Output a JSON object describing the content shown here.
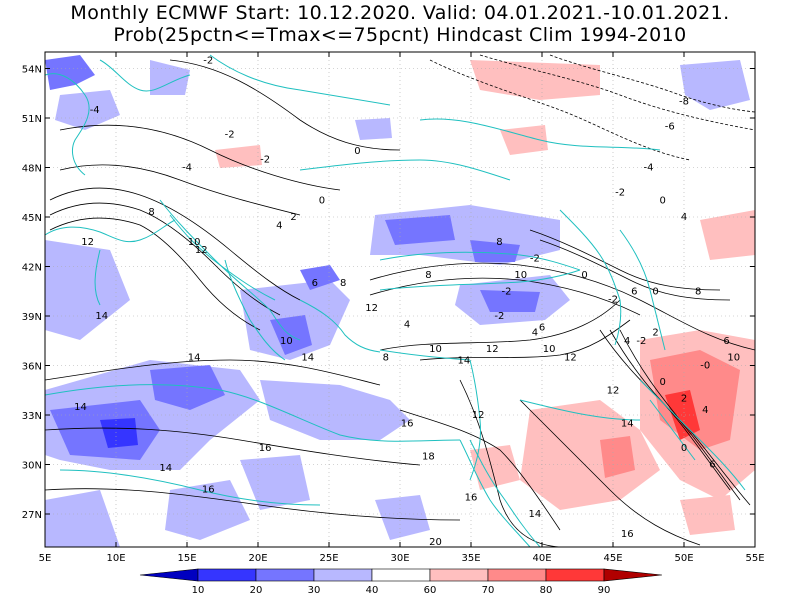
{
  "header": {
    "title_line1": "Monthly ECMWF Start: 10.12.2020. Valid: 04.01.2021.-10.01.2021.",
    "title_line2": "Prob(25pctn<=Tmax<=75pcnt) Hindcast Clim 1994-2010"
  },
  "map": {
    "lon_range": [
      5,
      55
    ],
    "lat_range": [
      25,
      55
    ],
    "lon_ticks": [
      {
        "value": 5,
        "label": "5E"
      },
      {
        "value": 10,
        "label": "10E"
      },
      {
        "value": 15,
        "label": "15E"
      },
      {
        "value": 20,
        "label": "20E"
      },
      {
        "value": 25,
        "label": "25E"
      },
      {
        "value": 30,
        "label": "30E"
      },
      {
        "value": 35,
        "label": "35E"
      },
      {
        "value": 40,
        "label": "40E"
      },
      {
        "value": 45,
        "label": "45E"
      },
      {
        "value": 50,
        "label": "50E"
      },
      {
        "value": 55,
        "label": "55E"
      }
    ],
    "lat_ticks": [
      {
        "value": 27,
        "label": "27N"
      },
      {
        "value": 30,
        "label": "30N"
      },
      {
        "value": 33,
        "label": "33N"
      },
      {
        "value": 36,
        "label": "36N"
      },
      {
        "value": 39,
        "label": "39N"
      },
      {
        "value": 42,
        "label": "42N"
      },
      {
        "value": 45,
        "label": "45N"
      },
      {
        "value": 48,
        "label": "48N"
      },
      {
        "value": 51,
        "label": "51N"
      },
      {
        "value": 54,
        "label": "54N"
      }
    ],
    "coast_color": "#20c0c0",
    "contour_labels": [
      {
        "lon": 16.5,
        "lat": 54.5,
        "text": "-2"
      },
      {
        "lon": 8.5,
        "lat": 51.5,
        "text": "-4"
      },
      {
        "lon": 18,
        "lat": 50.0,
        "text": "-2"
      },
      {
        "lon": 20.5,
        "lat": 48.5,
        "text": "-2"
      },
      {
        "lon": 15,
        "lat": 48.0,
        "text": "-4"
      },
      {
        "lon": 27,
        "lat": 49.0,
        "text": "0"
      },
      {
        "lon": 24.5,
        "lat": 46.0,
        "text": "0"
      },
      {
        "lon": 22.5,
        "lat": 45.0,
        "text": "2"
      },
      {
        "lon": 12.5,
        "lat": 45.3,
        "text": "8"
      },
      {
        "lon": 8,
        "lat": 43.5,
        "text": "12"
      },
      {
        "lon": 15.5,
        "lat": 43.5,
        "text": "10"
      },
      {
        "lon": 16,
        "lat": 43.0,
        "text": "12"
      },
      {
        "lon": 21.5,
        "lat": 44.5,
        "text": "4"
      },
      {
        "lon": 24,
        "lat": 41.0,
        "text": "6"
      },
      {
        "lon": 26,
        "lat": 41.0,
        "text": "8"
      },
      {
        "lon": 32,
        "lat": 41.5,
        "text": "8"
      },
      {
        "lon": 28,
        "lat": 39.5,
        "text": "12"
      },
      {
        "lon": 9,
        "lat": 39.0,
        "text": "14"
      },
      {
        "lon": 30.5,
        "lat": 38.5,
        "text": "4"
      },
      {
        "lon": 37.5,
        "lat": 40.5,
        "text": "-2"
      },
      {
        "lon": 38.5,
        "lat": 41.5,
        "text": "10"
      },
      {
        "lon": 37,
        "lat": 43.5,
        "text": "8"
      },
      {
        "lon": 39.5,
        "lat": 42.5,
        "text": "-2"
      },
      {
        "lon": 43,
        "lat": 41.5,
        "text": "0"
      },
      {
        "lon": 37,
        "lat": 39.0,
        "text": "-2"
      },
      {
        "lon": 39.5,
        "lat": 38.0,
        "text": "4"
      },
      {
        "lon": 40,
        "lat": 38.3,
        "text": "6"
      },
      {
        "lon": 45,
        "lat": 40.0,
        "text": "-2"
      },
      {
        "lon": 46.5,
        "lat": 40.5,
        "text": "6"
      },
      {
        "lon": 48,
        "lat": 40.5,
        "text": "0"
      },
      {
        "lon": 48.5,
        "lat": 46.0,
        "text": "0"
      },
      {
        "lon": 50,
        "lat": 45.0,
        "text": "4"
      },
      {
        "lon": 51,
        "lat": 40.5,
        "text": "8"
      },
      {
        "lon": 47.5,
        "lat": 48.0,
        "text": "-4"
      },
      {
        "lon": 45.5,
        "lat": 46.5,
        "text": "-2"
      },
      {
        "lon": 49,
        "lat": 50.5,
        "text": "-6"
      },
      {
        "lon": 50,
        "lat": 52.0,
        "text": "-8"
      },
      {
        "lon": 48,
        "lat": 38.0,
        "text": "2"
      },
      {
        "lon": 47,
        "lat": 37.5,
        "text": "-2"
      },
      {
        "lon": 46,
        "lat": 37.5,
        "text": "4"
      },
      {
        "lon": 53,
        "lat": 37.5,
        "text": "6"
      },
      {
        "lon": 53.5,
        "lat": 36.5,
        "text": "10"
      },
      {
        "lon": 51.5,
        "lat": 36.0,
        "text": "-0"
      },
      {
        "lon": 48.5,
        "lat": 35.0,
        "text": "0"
      },
      {
        "lon": 50,
        "lat": 34.0,
        "text": "2"
      },
      {
        "lon": 51.5,
        "lat": 33.3,
        "text": "4"
      },
      {
        "lon": 50,
        "lat": 31.0,
        "text": "0"
      },
      {
        "lon": 52,
        "lat": 30.0,
        "text": "6"
      },
      {
        "lon": 40.5,
        "lat": 37.0,
        "text": "10"
      },
      {
        "lon": 42,
        "lat": 36.5,
        "text": "12"
      },
      {
        "lon": 36.5,
        "lat": 37.0,
        "text": "12"
      },
      {
        "lon": 34.5,
        "lat": 36.3,
        "text": "14"
      },
      {
        "lon": 32.5,
        "lat": 37.0,
        "text": "10"
      },
      {
        "lon": 29,
        "lat": 36.5,
        "text": "8"
      },
      {
        "lon": 22,
        "lat": 37.5,
        "text": "10"
      },
      {
        "lon": 23.5,
        "lat": 36.5,
        "text": "14"
      },
      {
        "lon": 15.5,
        "lat": 36.5,
        "text": "14"
      },
      {
        "lon": 7.5,
        "lat": 33.5,
        "text": "14"
      },
      {
        "lon": 45,
        "lat": 34.5,
        "text": "12"
      },
      {
        "lon": 46,
        "lat": 32.5,
        "text": "14"
      },
      {
        "lon": 30.5,
        "lat": 32.5,
        "text": "16"
      },
      {
        "lon": 35.5,
        "lat": 33.0,
        "text": "12"
      },
      {
        "lon": 20.5,
        "lat": 31.0,
        "text": "16"
      },
      {
        "lon": 32,
        "lat": 30.5,
        "text": "18"
      },
      {
        "lon": 13.5,
        "lat": 29.8,
        "text": "14"
      },
      {
        "lon": 16.5,
        "lat": 28.5,
        "text": "16"
      },
      {
        "lon": 35,
        "lat": 28.0,
        "text": "16"
      },
      {
        "lon": 39.5,
        "lat": 27.0,
        "text": "14"
      },
      {
        "lon": 32.5,
        "lat": 25.3,
        "text": "20"
      },
      {
        "lon": 46,
        "lat": 25.8,
        "text": "16"
      }
    ]
  },
  "colorbar": {
    "labels": [
      "10",
      "20",
      "30",
      "40",
      "60",
      "70",
      "80",
      "90"
    ],
    "colors": [
      "#0000c0",
      "#3535ff",
      "#7575ff",
      "#b8b8ff",
      "#ffffff",
      "#ffbfbf",
      "#ff8a8a",
      "#ff3838",
      "#b00000"
    ]
  }
}
